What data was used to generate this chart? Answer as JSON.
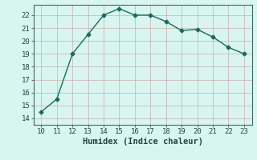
{
  "x": [
    10,
    11,
    12,
    13,
    14,
    15,
    16,
    17,
    18,
    19,
    20,
    21,
    22,
    23
  ],
  "y": [
    14.5,
    15.5,
    19.0,
    20.5,
    22.0,
    22.5,
    22.0,
    22.0,
    21.5,
    20.8,
    20.9,
    20.3,
    19.5,
    19.0
  ],
  "line_color": "#1a6b5a",
  "marker": "D",
  "marker_size": 2.5,
  "background_color": "#d8f5f0",
  "grid_color_major": "#c8a8a8",
  "grid_color_minor": "#c8a8a8",
  "xlabel": "Humidex (Indice chaleur)",
  "xlabel_fontsize": 7.5,
  "tick_fontsize": 6.5,
  "xlim": [
    9.5,
    23.5
  ],
  "ylim": [
    13.5,
    22.8
  ],
  "yticks": [
    14,
    15,
    16,
    17,
    18,
    19,
    20,
    21,
    22
  ],
  "xticks": [
    10,
    11,
    12,
    13,
    14,
    15,
    16,
    17,
    18,
    19,
    20,
    21,
    22,
    23
  ]
}
